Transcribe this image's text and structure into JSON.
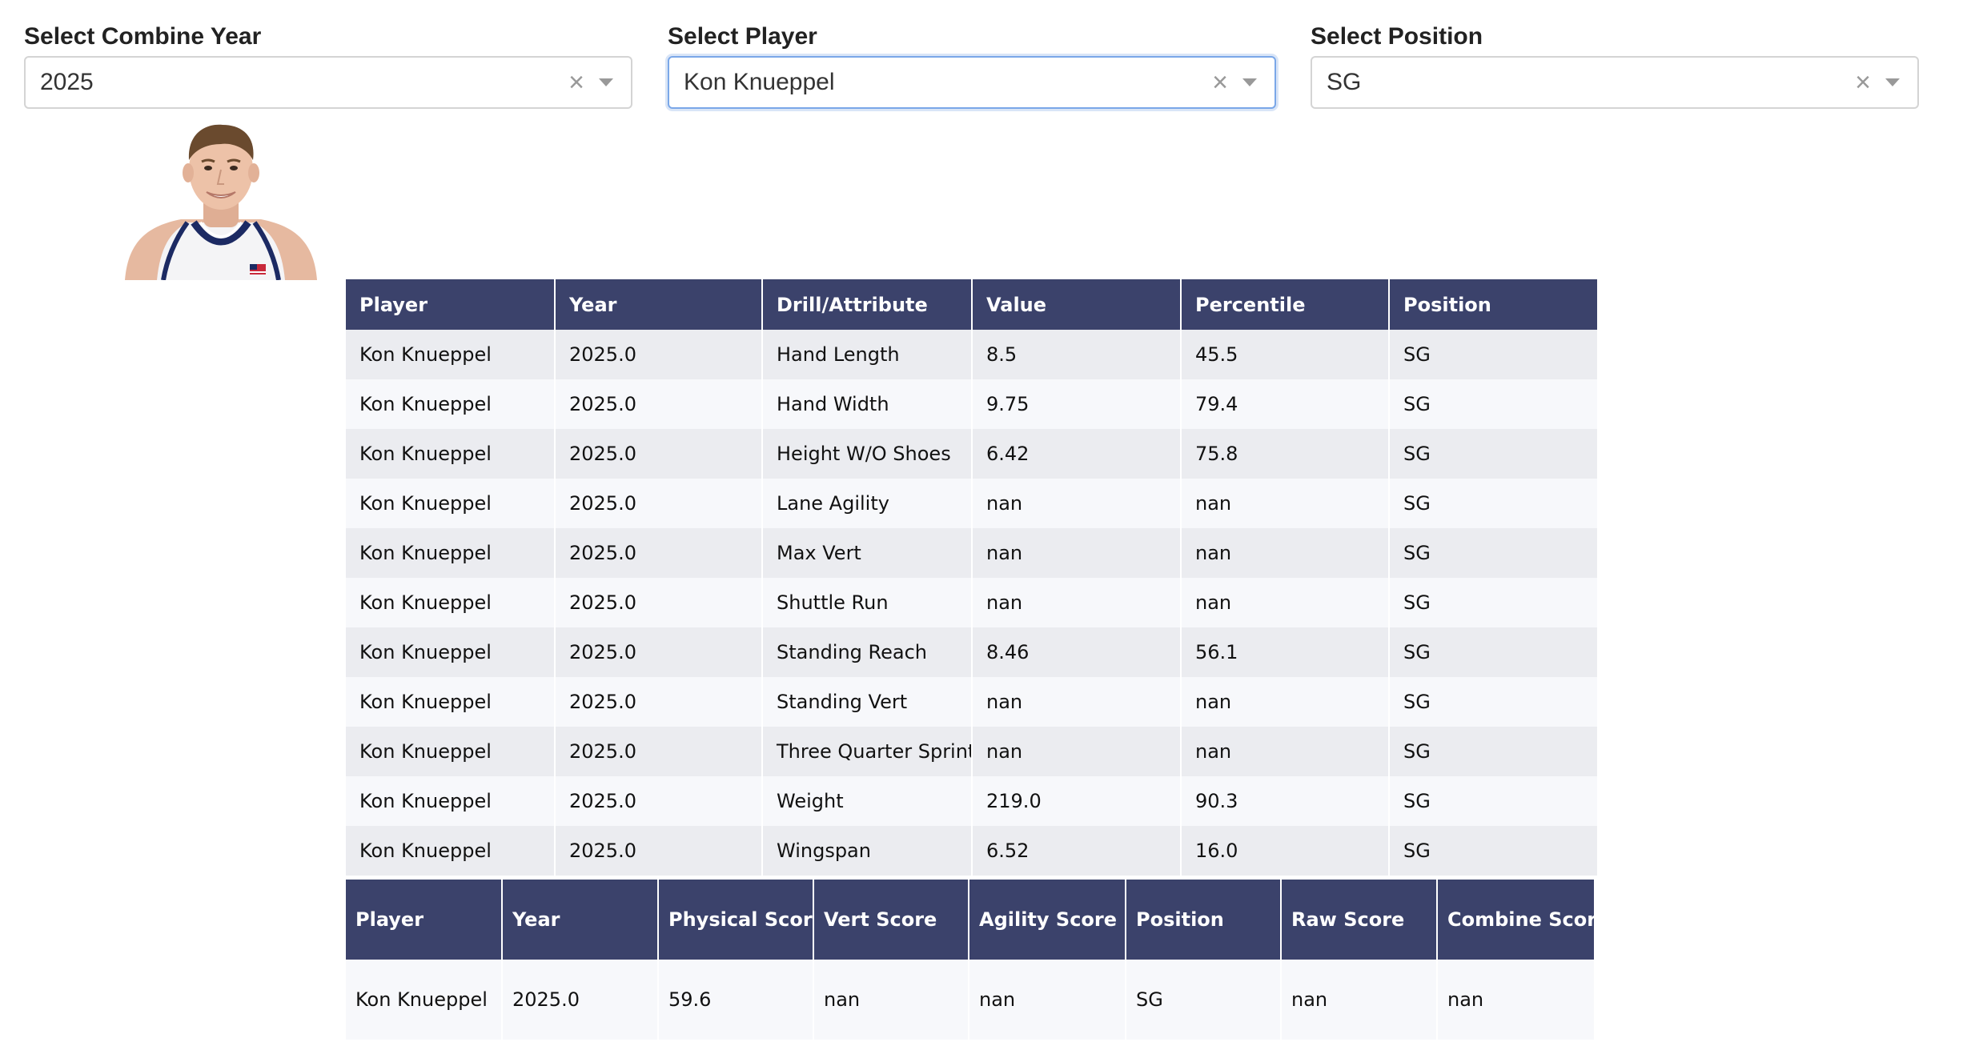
{
  "filters": {
    "year": {
      "label": "Select Combine Year",
      "value": "2025"
    },
    "player": {
      "label": "Select Player",
      "value": "Kon Knueppel"
    },
    "position": {
      "label": "Select Position",
      "value": "SG"
    },
    "clear_glyph": "×"
  },
  "drill_table": {
    "headers": [
      "Player",
      "Year",
      "Drill/Attribute",
      "Value",
      "Percentile",
      "Position"
    ],
    "rows": [
      [
        "Kon Knueppel",
        "2025.0",
        "Hand Length",
        "8.5",
        "45.5",
        "SG"
      ],
      [
        "Kon Knueppel",
        "2025.0",
        "Hand Width",
        "9.75",
        "79.4",
        "SG"
      ],
      [
        "Kon Knueppel",
        "2025.0",
        "Height W/O Shoes",
        "6.42",
        "75.8",
        "SG"
      ],
      [
        "Kon Knueppel",
        "2025.0",
        "Lane Agility",
        "nan",
        "nan",
        "SG"
      ],
      [
        "Kon Knueppel",
        "2025.0",
        "Max Vert",
        "nan",
        "nan",
        "SG"
      ],
      [
        "Kon Knueppel",
        "2025.0",
        "Shuttle Run",
        "nan",
        "nan",
        "SG"
      ],
      [
        "Kon Knueppel",
        "2025.0",
        "Standing Reach",
        "8.46",
        "56.1",
        "SG"
      ],
      [
        "Kon Knueppel",
        "2025.0",
        "Standing Vert",
        "nan",
        "nan",
        "SG"
      ],
      [
        "Kon Knueppel",
        "2025.0",
        "Three Quarter Sprint",
        "nan",
        "nan",
        "SG"
      ],
      [
        "Kon Knueppel",
        "2025.0",
        "Weight",
        "219.0",
        "90.3",
        "SG"
      ],
      [
        "Kon Knueppel",
        "2025.0",
        "Wingspan",
        "6.52",
        "16.0",
        "SG"
      ]
    ]
  },
  "score_table": {
    "headers": [
      "Player",
      "Year",
      "Physical Score",
      "Vert Score",
      "Agility Score",
      "Position",
      "Raw Score",
      "Combine Score"
    ],
    "rows": [
      [
        "Kon Knueppel",
        "2025.0",
        "59.6",
        "nan",
        "nan",
        "SG",
        "nan",
        "nan"
      ]
    ]
  }
}
